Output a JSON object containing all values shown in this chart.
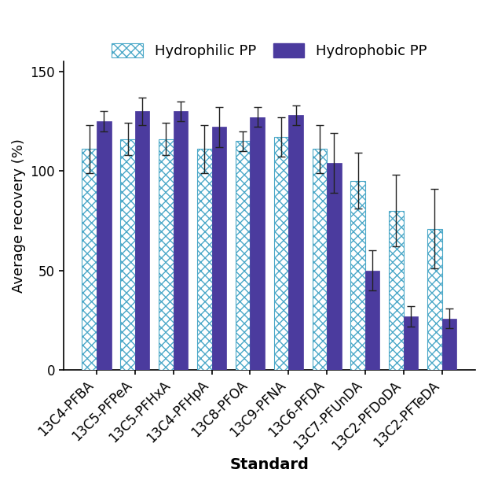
{
  "categories": [
    "13C4-PFBA",
    "13C5-PFPeA",
    "13C5-PFHxA",
    "13C4-PFHpA",
    "13C8-PFOA",
    "13C9-PFNA",
    "13C6-PFDA",
    "13C7-PFUnDA",
    "13C2-PFDoDA",
    "13C2-PFTeDA"
  ],
  "hydrophilic_values": [
    111,
    116,
    116,
    111,
    115,
    117,
    111,
    95,
    80,
    71
  ],
  "hydrophilic_errors": [
    12,
    8,
    8,
    12,
    5,
    10,
    12,
    14,
    18,
    20
  ],
  "hydrophobic_values": [
    125,
    130,
    130,
    122,
    127,
    128,
    104,
    50,
    27,
    26
  ],
  "hydrophobic_errors": [
    5,
    7,
    5,
    10,
    5,
    5,
    15,
    10,
    5,
    5
  ],
  "hydrophilic_bar_color": "#FFFFFF",
  "hydrophilic_hatch_color": "#4BA8C8",
  "hydrophobic_color": "#4B3B9E",
  "ylabel": "Average recovery (%)",
  "xlabel": "Standard",
  "ylim": [
    0,
    155
  ],
  "yticks": [
    0,
    50,
    100,
    150
  ],
  "bar_width": 0.38,
  "legend_labels": [
    "Hydrophilic PP",
    "Hydrophobic PP"
  ],
  "label_fontsize": 13,
  "tick_fontsize": 12,
  "legend_fontsize": 13,
  "figure_width": 6.2,
  "figure_height": 6.15
}
